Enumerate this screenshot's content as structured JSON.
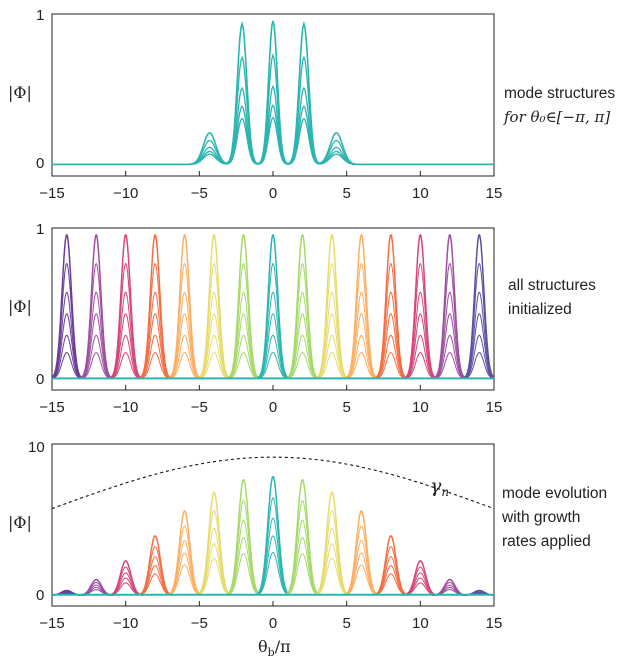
{
  "chart_data": [
    {
      "type": "line",
      "xlim": [
        -15,
        15
      ],
      "ylim": [
        0,
        1
      ],
      "xticks": [
        -15,
        -10,
        -5,
        0,
        5,
        10,
        15
      ],
      "yticks": [
        0,
        1
      ],
      "ylabel": "|Φ|",
      "annotation": [
        "mode structures",
        "for  θ₀∈[−π, π]"
      ],
      "series": [
        {
          "amplitude": 0.92,
          "color": "#2bb5b0"
        },
        {
          "amplitude": 0.7,
          "color": "#2bb5b0"
        },
        {
          "amplitude": 0.5,
          "color": "#2bb5b0"
        },
        {
          "amplitude": 0.38,
          "color": "#2bb5b0"
        },
        {
          "amplitude": 0.3,
          "color": "#2bb5b0"
        }
      ]
    },
    {
      "type": "line",
      "xlim": [
        -15,
        15
      ],
      "ylim": [
        0,
        1
      ],
      "xticks": [
        -15,
        -10,
        -5,
        0,
        5,
        10,
        15
      ],
      "yticks": [
        0,
        1
      ],
      "ylabel": "|Φ|",
      "annotation": [
        "all structures",
        "initialized"
      ],
      "mode_centers": [
        -14,
        -12,
        -10,
        -8,
        -6,
        -4,
        -2,
        0,
        2,
        4,
        6,
        8,
        10,
        12,
        14
      ],
      "peak_value": 0.92,
      "colors": [
        "#6a3d9a",
        "#9e4fa0",
        "#d6457a",
        "#f46d43",
        "#fdae61",
        "#e6dc6e",
        "#a6d96a",
        "#2bb5b0",
        "#a6d96a",
        "#e6dc6e",
        "#fdae61",
        "#f46d43",
        "#d6457a",
        "#9e4fa0",
        "#5e4fa2"
      ]
    },
    {
      "type": "line",
      "xlim": [
        -15,
        15
      ],
      "ylim": [
        0,
        10
      ],
      "xticks": [
        -15,
        -10,
        -5,
        0,
        5,
        10,
        15
      ],
      "yticks": [
        0,
        10
      ],
      "ylabel": "|Φ|",
      "xlabel": "θb/π",
      "xlabel_main": "θ",
      "xlabel_sub": "b",
      "xlabel_tail": "/π",
      "annotation": [
        "mode evolution",
        "with growth",
        "rates applied"
      ],
      "growth_label": "γn",
      "growth_label_main": "γ",
      "growth_label_sub": "n",
      "growth_curve": {
        "style": "dashed",
        "max": 8.9,
        "at_x_pm15": 5.6
      },
      "mode_centers": [
        -14,
        -12,
        -10,
        -8,
        -6,
        -4,
        -2,
        0,
        2,
        4,
        6,
        8,
        10,
        12,
        14
      ],
      "peak_values": [
        0.3,
        1.0,
        2.2,
        3.8,
        5.4,
        6.6,
        7.4,
        7.6,
        7.4,
        6.6,
        5.4,
        3.8,
        2.2,
        1.0,
        0.3
      ]
    }
  ]
}
